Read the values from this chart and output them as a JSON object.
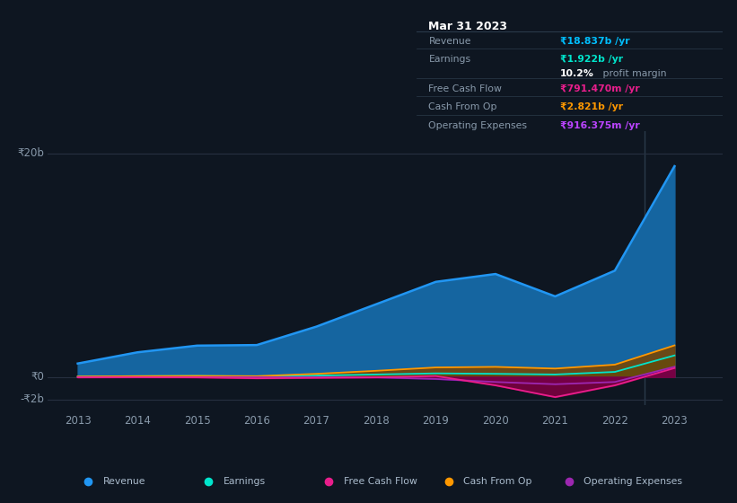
{
  "background_color": "#0e1621",
  "chart_bg": "#0e1621",
  "years": [
    2013,
    2014,
    2015,
    2016,
    2017,
    2018,
    2019,
    2020,
    2021,
    2022,
    2023
  ],
  "revenue": [
    1.2,
    2.2,
    2.8,
    2.85,
    4.5,
    6.5,
    8.5,
    9.2,
    7.2,
    9.5,
    18.837
  ],
  "earnings": [
    0.04,
    0.07,
    0.09,
    0.04,
    0.12,
    0.22,
    0.32,
    0.28,
    0.22,
    0.45,
    1.922
  ],
  "free_cash_flow": [
    -0.04,
    -0.02,
    -0.04,
    -0.12,
    -0.08,
    -0.04,
    0.08,
    -0.75,
    -1.8,
    -0.75,
    0.7914
  ],
  "cash_from_op": [
    0.04,
    0.07,
    0.09,
    0.07,
    0.28,
    0.55,
    0.85,
    0.9,
    0.75,
    1.1,
    2.821
  ],
  "operating_expenses": [
    -0.02,
    -0.02,
    -0.02,
    -0.02,
    -0.04,
    -0.04,
    -0.18,
    -0.45,
    -0.65,
    -0.45,
    0.916
  ],
  "revenue_color": "#2196f3",
  "earnings_color": "#00e5cc",
  "free_cash_flow_color": "#e91e8c",
  "cash_from_op_color": "#ff9800",
  "operating_expenses_color": "#9c27b0",
  "revenue_fill_color": "#1565a0",
  "earnings_fill_color": "#006655",
  "fcf_fill_color": "#7b0040",
  "cfo_fill_color": "#7a4400",
  "opex_fill_color": "#4a0080",
  "ylim": [
    -2.5,
    22.0
  ],
  "xlim": [
    2012.5,
    2023.8
  ],
  "xlabel_years": [
    "2013",
    "2014",
    "2015",
    "2016",
    "2017",
    "2018",
    "2019",
    "2020",
    "2021",
    "2022",
    "2023"
  ],
  "grid_color": "#263040",
  "text_color": "#8899aa",
  "info_title": "Mar 31 2023",
  "info_bg": "#080f18",
  "info_border": "#2a3a4a",
  "legend_entries": [
    {
      "label": "Revenue",
      "color": "#2196f3"
    },
    {
      "label": "Earnings",
      "color": "#00e5cc"
    },
    {
      "label": "Free Cash Flow",
      "color": "#e91e8c"
    },
    {
      "label": "Cash From Op",
      "color": "#ff9800"
    },
    {
      "label": "Operating Expenses",
      "color": "#9c27b0"
    }
  ]
}
